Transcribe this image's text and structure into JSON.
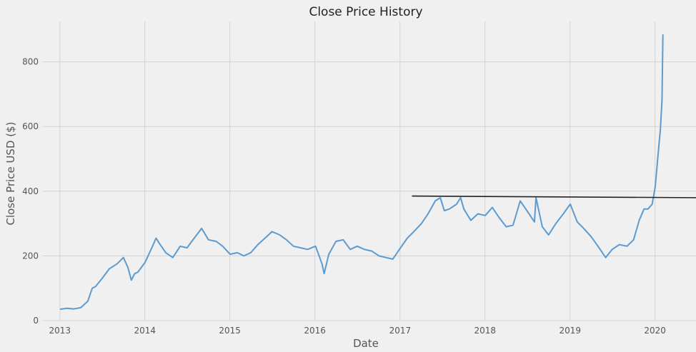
{
  "chart_data": {
    "type": "line",
    "title": "Close Price History",
    "xlabel": "Date",
    "ylabel": "Close Price USD ($)",
    "xlim": [
      "2012-10-20",
      "2020-06-25"
    ],
    "ylim": [
      0,
      925
    ],
    "x_ticks": [
      "2013",
      "2014",
      "2015",
      "2016",
      "2017",
      "2018",
      "2019",
      "2020"
    ],
    "y_ticks": [
      0,
      200,
      400,
      600,
      800
    ],
    "grid": true,
    "legend": "none",
    "colors": {
      "series": "#5b9bd0",
      "reference_line": "#222222",
      "background": "#f0f0f0",
      "grid": "#d3d3d3"
    },
    "series": [
      {
        "x": [
          "2013-01-02",
          "2013-02-01",
          "2013-03-01",
          "2013-04-01",
          "2013-05-01",
          "2013-05-20",
          "2013-06-03",
          "2013-07-01",
          "2013-08-01",
          "2013-09-03",
          "2013-10-01",
          "2013-10-20",
          "2013-11-04",
          "2013-11-18",
          "2013-12-02",
          "2014-01-02",
          "2014-02-03",
          "2014-02-18",
          "2014-03-03",
          "2014-04-01",
          "2014-05-01",
          "2014-06-02",
          "2014-07-01",
          "2014-08-01",
          "2014-09-02",
          "2014-10-01",
          "2014-11-03",
          "2014-12-01",
          "2015-01-02",
          "2015-02-02",
          "2015-03-02",
          "2015-04-01",
          "2015-05-01",
          "2015-06-01",
          "2015-07-01",
          "2015-08-03",
          "2015-09-01",
          "2015-10-01",
          "2015-11-02",
          "2015-12-01",
          "2016-01-04",
          "2016-02-01",
          "2016-02-10",
          "2016-03-01",
          "2016-04-01",
          "2016-05-02",
          "2016-06-01",
          "2016-07-01",
          "2016-08-01",
          "2016-09-01",
          "2016-10-03",
          "2016-11-01",
          "2016-12-01",
          "2017-01-03",
          "2017-02-01",
          "2017-03-01",
          "2017-04-03",
          "2017-05-01",
          "2017-06-01",
          "2017-06-23",
          "2017-07-10",
          "2017-08-01",
          "2017-09-01",
          "2017-09-18",
          "2017-10-02",
          "2017-11-01",
          "2017-12-01",
          "2018-01-02",
          "2018-02-01",
          "2018-03-01",
          "2018-04-02",
          "2018-05-01",
          "2018-06-01",
          "2018-06-25",
          "2018-08-01",
          "2018-08-08",
          "2018-09-04",
          "2018-10-01",
          "2018-11-01",
          "2018-12-03",
          "2019-01-02",
          "2019-02-01",
          "2019-03-01",
          "2019-04-01",
          "2019-05-01",
          "2019-06-03",
          "2019-07-01",
          "2019-08-01",
          "2019-09-03",
          "2019-10-01",
          "2019-10-25",
          "2019-11-15",
          "2019-12-02",
          "2019-12-20",
          "2020-01-02",
          "2020-01-15",
          "2020-01-24",
          "2020-01-31",
          "2020-02-04"
        ],
        "y": [
          35,
          38,
          36,
          40,
          60,
          100,
          105,
          130,
          160,
          175,
          195,
          165,
          125,
          145,
          150,
          180,
          230,
          255,
          240,
          210,
          195,
          230,
          225,
          255,
          285,
          250,
          245,
          230,
          205,
          210,
          200,
          210,
          235,
          255,
          275,
          265,
          250,
          230,
          225,
          220,
          230,
          175,
          145,
          205,
          245,
          250,
          220,
          230,
          220,
          215,
          200,
          195,
          190,
          225,
          255,
          275,
          300,
          330,
          370,
          380,
          340,
          345,
          360,
          380,
          345,
          310,
          330,
          325,
          350,
          320,
          290,
          295,
          370,
          345,
          305,
          380,
          290,
          265,
          300,
          330,
          360,
          305,
          285,
          260,
          230,
          195,
          220,
          235,
          230,
          250,
          310,
          345,
          345,
          360,
          415,
          520,
          590,
          680,
          885
        ]
      }
    ],
    "reference_line": {
      "x": [
        "2017-02-21",
        "2020-06-25"
      ],
      "y": [
        385,
        380
      ]
    }
  }
}
